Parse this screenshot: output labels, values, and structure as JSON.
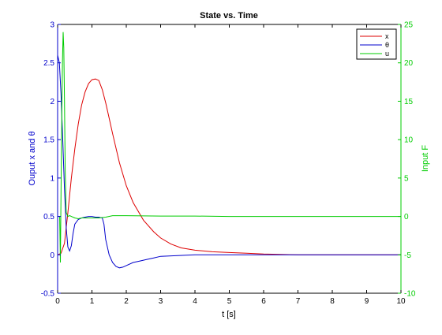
{
  "chart_data": {
    "type": "line",
    "title": "State vs. Time",
    "xlabel": "t [s]",
    "ylabel_left": "Ouput x and θ",
    "ylabel_right": "Input F",
    "xlim": [
      0,
      10
    ],
    "ylim_left": [
      -0.5,
      3
    ],
    "ylim_right": [
      -10,
      25
    ],
    "xticks": [
      "0",
      "1",
      "2",
      "3",
      "4",
      "5",
      "6",
      "7",
      "8",
      "9",
      "10"
    ],
    "yticks_left": [
      "-0.5",
      "0",
      "0.5",
      "1",
      "1.5",
      "2",
      "2.5",
      "3"
    ],
    "yticks_right": [
      "-10",
      "-5",
      "0",
      "5",
      "10",
      "15",
      "20",
      "25"
    ],
    "left_axis_color": "#0000cc",
    "right_axis_color": "#00cc00",
    "legend_position": "top-right",
    "series": [
      {
        "name": "x",
        "axis": "left",
        "color": "#dd0000",
        "x": [
          0,
          0.1,
          0.2,
          0.3,
          0.4,
          0.5,
          0.6,
          0.7,
          0.8,
          0.9,
          1.0,
          1.1,
          1.2,
          1.3,
          1.4,
          1.5,
          1.6,
          1.8,
          2.0,
          2.2,
          2.5,
          2.8,
          3.0,
          3.3,
          3.6,
          4.0,
          4.5,
          5.0,
          5.5,
          6.0,
          7.0,
          8.0,
          9.0,
          10.0
        ],
        "y": [
          0,
          0.02,
          0.15,
          0.55,
          1.0,
          1.38,
          1.7,
          1.95,
          2.12,
          2.23,
          2.28,
          2.29,
          2.27,
          2.15,
          1.98,
          1.78,
          1.58,
          1.2,
          0.9,
          0.68,
          0.45,
          0.3,
          0.22,
          0.14,
          0.09,
          0.06,
          0.04,
          0.03,
          0.02,
          0.01,
          0.0,
          0.0,
          0.0,
          0.0
        ]
      },
      {
        "name": "θ",
        "axis": "left",
        "color": "#0000cc",
        "x": [
          0,
          0.05,
          0.1,
          0.15,
          0.2,
          0.25,
          0.3,
          0.35,
          0.4,
          0.45,
          0.5,
          0.6,
          0.7,
          0.8,
          0.9,
          1.0,
          1.1,
          1.2,
          1.3,
          1.35,
          1.4,
          1.5,
          1.6,
          1.7,
          1.8,
          1.9,
          2.0,
          2.2,
          2.4,
          2.6,
          2.8,
          3.0,
          3.5,
          4.0,
          4.5,
          5.0,
          6.0,
          7.0,
          8.0,
          9.0,
          10.0
        ],
        "y": [
          2.6,
          2.5,
          2.1,
          1.5,
          0.85,
          0.35,
          0.1,
          0.05,
          0.12,
          0.28,
          0.4,
          0.46,
          0.48,
          0.49,
          0.5,
          0.5,
          0.49,
          0.49,
          0.48,
          0.4,
          0.2,
          0.0,
          -0.1,
          -0.15,
          -0.17,
          -0.16,
          -0.14,
          -0.1,
          -0.08,
          -0.06,
          -0.04,
          -0.02,
          -0.01,
          0.0,
          0.0,
          0.0,
          0.0,
          0.0,
          0.0,
          0.0,
          0.0
        ]
      },
      {
        "name": "u",
        "axis": "right",
        "color": "#00cc00",
        "x": [
          0,
          0.03,
          0.06,
          0.08,
          0.1,
          0.12,
          0.14,
          0.16,
          0.18,
          0.2,
          0.22,
          0.25,
          0.3,
          0.35,
          0.4,
          0.5,
          0.6,
          0.7,
          0.8,
          1.0,
          1.2,
          1.4,
          1.6,
          2.0,
          3.0,
          4.0,
          5.0,
          6.0,
          7.0,
          8.0,
          9.0,
          10.0
        ],
        "y": [
          0,
          0,
          0,
          -6,
          3,
          12,
          20,
          24,
          22,
          15,
          6,
          0.5,
          0,
          0.1,
          0.0,
          -0.2,
          -0.3,
          -0.2,
          -0.2,
          -0.2,
          -0.2,
          -0.1,
          0.1,
          0.1,
          0.05,
          0.05,
          0.0,
          0.0,
          0.0,
          0.0,
          0.0,
          0.0
        ]
      }
    ]
  }
}
